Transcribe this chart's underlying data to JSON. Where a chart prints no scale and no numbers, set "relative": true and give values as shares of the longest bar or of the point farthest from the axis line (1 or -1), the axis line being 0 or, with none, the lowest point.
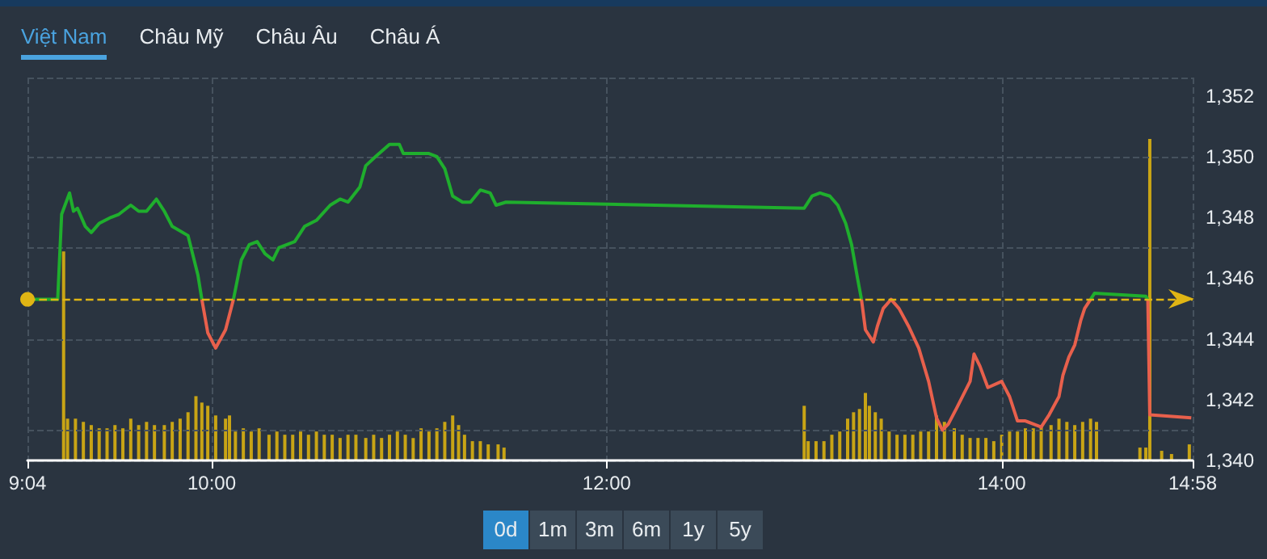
{
  "chart_data": [
    {
      "type": "line",
      "annotations": [
        "Việt Nam",
        "Châu Mỹ",
        "Châu Âu",
        "Châu Á",
        "0d",
        "1m",
        "3m",
        "6m",
        "1y",
        "5y"
      ],
      "xlim": [
        9.067,
        14.967
      ],
      "xticks": [
        {
          "value": 9.067,
          "label": "9:04"
        },
        {
          "value": 10,
          "label": "10:00"
        },
        {
          "value": 12,
          "label": "12:00"
        },
        {
          "value": 14,
          "label": "14:00"
        },
        {
          "value": 14.967,
          "label": "14:58"
        }
      ],
      "ylim": [
        1340,
        1352.6
      ],
      "yticks": [
        {
          "value": 1340,
          "label": "1,340"
        },
        {
          "value": 1342,
          "label": "1,342"
        },
        {
          "value": 1344,
          "label": "1,344"
        },
        {
          "value": 1346,
          "label": "1,346"
        },
        {
          "value": 1348,
          "label": "1,348"
        },
        {
          "value": 1350,
          "label": "1,350"
        },
        {
          "value": 1352,
          "label": "1,352"
        }
      ],
      "grid": true,
      "ref_lines": [
        {
          "axis": "y",
          "value": 1345.3,
          "label": null,
          "color": "#e0b514",
          "line_style": "dashed"
        }
      ],
      "series": [
        {
          "color": "#1fae2d",
          "x": [
            9.07,
            9.22,
            9.24,
            9.28,
            9.3,
            9.32,
            9.36,
            9.39,
            9.43,
            9.49,
            9.53,
            9.59,
            9.63,
            9.67,
            9.72,
            9.76,
            9.8,
            9.88,
            9.93,
            9.95,
            10.02,
            10.11,
            10.15,
            10.19,
            10.23,
            10.27,
            10.31,
            10.34,
            10.42,
            10.47,
            10.53,
            10.6,
            10.65,
            10.69,
            10.75,
            10.78,
            10.83,
            10.9,
            10.95,
            10.97,
            11.02,
            11.1,
            11.14,
            11.18,
            11.22,
            11.27,
            11.31,
            11.36,
            11.41,
            11.44,
            11.49,
            13.0,
            13.04,
            13.08,
            13.13,
            13.17,
            13.21,
            13.24,
            13.27,
            13.29,
            13.9,
            14.45,
            14.47,
            14.73,
            14.74
          ],
          "values": [
            1345.3,
            1345.3,
            1348.1,
            1348.8,
            1348.2,
            1348.3,
            1347.7,
            1347.5,
            1347.8,
            1348.0,
            1348.1,
            1348.4,
            1348.2,
            1348.2,
            1348.6,
            1348.2,
            1347.7,
            1347.4,
            1346.1,
            1345.3,
            null,
            1345.3,
            1346.6,
            1347.1,
            1347.2,
            1346.8,
            1346.6,
            1347.0,
            1347.2,
            1347.7,
            1347.9,
            1348.4,
            1348.6,
            1348.5,
            1349.0,
            1349.7,
            1350.0,
            1350.4,
            1350.4,
            1350.1,
            1350.1,
            1350.1,
            1350.0,
            1349.6,
            1348.7,
            1348.5,
            1348.5,
            1348.9,
            1348.8,
            1348.4,
            1348.5,
            1348.3,
            1348.7,
            1348.8,
            1348.7,
            1348.4,
            1347.8,
            1347.1,
            1346.0,
            1345.3,
            null,
            1345.3,
            1345.5,
            1345.4,
            1345.3
          ]
        },
        {
          "color": "#e8604c",
          "x": [
            9.95,
            9.98,
            10.02,
            10.07,
            10.11,
            12.0,
            13.29,
            13.31,
            13.35,
            13.37,
            13.4,
            13.44,
            13.48,
            13.53,
            13.58,
            13.63,
            13.67,
            13.7,
            13.73,
            13.77,
            13.84,
            13.86,
            13.89,
            13.93,
            14.0,
            14.04,
            14.08,
            14.12,
            14.16,
            14.2,
            14.24,
            14.29,
            14.31,
            14.34,
            14.37,
            14.4,
            14.42,
            14.45,
            14.6,
            14.74,
            14.75,
            14.96
          ],
          "values": [
            1345.3,
            1344.2,
            1343.7,
            1344.3,
            1345.3,
            null,
            1345.3,
            1344.3,
            1343.9,
            1344.4,
            1345.0,
            1345.3,
            1345.0,
            1344.4,
            1343.7,
            1342.6,
            1341.4,
            1341.0,
            1341.2,
            1341.7,
            1342.6,
            1343.5,
            1343.1,
            1342.4,
            1342.6,
            1342.1,
            1341.3,
            1341.3,
            1341.2,
            1341.1,
            1341.5,
            1342.1,
            1342.8,
            1343.4,
            1343.8,
            1344.6,
            1345.0,
            1345.3,
            null,
            1345.3,
            1341.5,
            1341.4
          ]
        }
      ]
    },
    {
      "type": "bar",
      "relative": true,
      "xlim": [
        9.067,
        14.967
      ],
      "x": [
        9.25,
        9.27,
        9.31,
        9.35,
        9.39,
        9.43,
        9.47,
        9.51,
        9.55,
        9.59,
        9.63,
        9.67,
        9.71,
        9.76,
        9.8,
        9.84,
        9.88,
        9.92,
        9.95,
        9.98,
        10.02,
        10.07,
        10.09,
        10.12,
        10.16,
        10.2,
        10.24,
        10.29,
        10.33,
        10.37,
        10.41,
        10.45,
        10.49,
        10.53,
        10.57,
        10.61,
        10.65,
        10.69,
        10.73,
        10.78,
        10.82,
        10.86,
        10.9,
        10.94,
        10.98,
        11.02,
        11.06,
        11.1,
        11.14,
        11.18,
        11.22,
        11.25,
        11.28,
        11.32,
        11.36,
        11.4,
        11.45,
        11.48,
        13.0,
        13.02,
        13.06,
        13.1,
        13.14,
        13.18,
        13.22,
        13.25,
        13.28,
        13.31,
        13.33,
        13.36,
        13.39,
        13.43,
        13.47,
        13.51,
        13.55,
        13.59,
        13.63,
        13.67,
        13.71,
        13.76,
        13.8,
        13.84,
        13.88,
        13.92,
        13.96,
        14.0,
        14.04,
        14.08,
        14.12,
        14.16,
        14.2,
        14.25,
        14.29,
        14.33,
        14.37,
        14.41,
        14.45,
        14.48,
        14.7,
        14.73,
        14.75,
        14.81,
        14.86,
        14.95
      ],
      "values": [
        0.65,
        0.13,
        0.13,
        0.12,
        0.11,
        0.1,
        0.1,
        0.11,
        0.1,
        0.13,
        0.11,
        0.12,
        0.11,
        0.11,
        0.12,
        0.13,
        0.15,
        0.2,
        0.18,
        0.17,
        0.14,
        0.13,
        0.14,
        0.09,
        0.1,
        0.09,
        0.1,
        0.08,
        0.09,
        0.08,
        0.08,
        0.09,
        0.08,
        0.09,
        0.08,
        0.08,
        0.07,
        0.08,
        0.08,
        0.07,
        0.08,
        0.07,
        0.08,
        0.09,
        0.08,
        0.07,
        0.1,
        0.09,
        0.1,
        0.12,
        0.14,
        0.11,
        0.08,
        0.06,
        0.06,
        0.05,
        0.05,
        0.04,
        0.17,
        0.06,
        0.06,
        0.06,
        0.08,
        0.09,
        0.13,
        0.15,
        0.16,
        0.21,
        0.17,
        0.15,
        0.13,
        0.09,
        0.08,
        0.08,
        0.08,
        0.09,
        0.09,
        0.14,
        0.12,
        0.1,
        0.08,
        0.07,
        0.07,
        0.07,
        0.06,
        0.08,
        0.09,
        0.09,
        0.1,
        0.1,
        0.11,
        0.11,
        0.13,
        0.12,
        0.11,
        0.12,
        0.13,
        0.12,
        0.04,
        0.04,
        1.0,
        0.03,
        0.02,
        0.05
      ],
      "color": "#c8a415"
    }
  ]
}
